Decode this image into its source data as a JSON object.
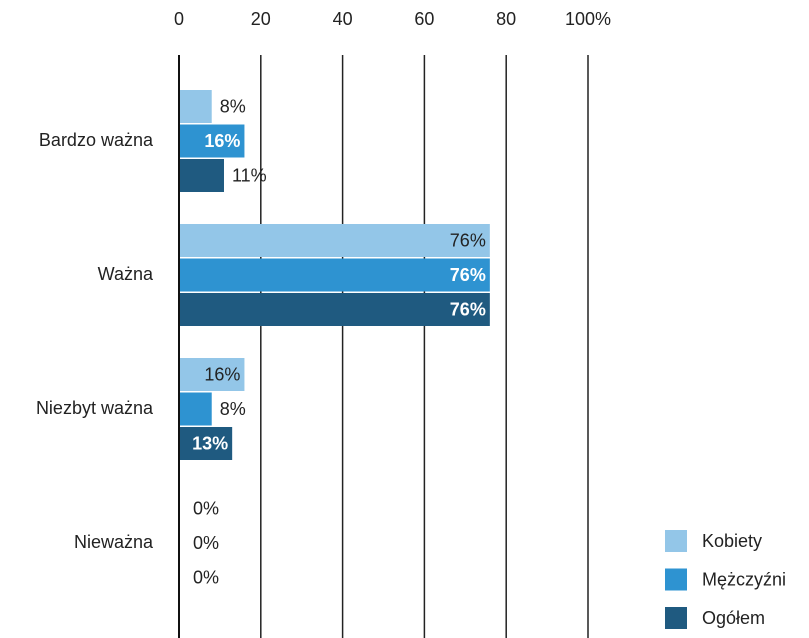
{
  "chart_data": {
    "type": "barh",
    "categories": [
      "Bardzo ważna",
      "Ważna",
      "Niezbyt ważna",
      "Nieważna"
    ],
    "series": [
      {
        "name": "Kobiety",
        "color": "#93c6e8",
        "values": [
          8,
          76,
          16,
          0
        ],
        "value_labels": [
          "8%",
          "76%",
          "16%",
          "0%"
        ]
      },
      {
        "name": "Mężczyźni",
        "color": "#2e93d1",
        "values": [
          16,
          76,
          8,
          0
        ],
        "value_labels": [
          "16%",
          "76%",
          "8%",
          "0%"
        ]
      },
      {
        "name": "Ogółem",
        "color": "#1f5a80",
        "values": [
          11,
          76,
          13,
          0
        ],
        "value_labels": [
          "11%",
          "76%",
          "13%",
          "0%"
        ]
      }
    ],
    "xlim": [
      0,
      100
    ],
    "xticks": [
      0,
      20,
      40,
      60,
      80,
      {
        "value": 100,
        "label": "100%"
      }
    ],
    "grid": true,
    "legend": "bottom-right"
  }
}
